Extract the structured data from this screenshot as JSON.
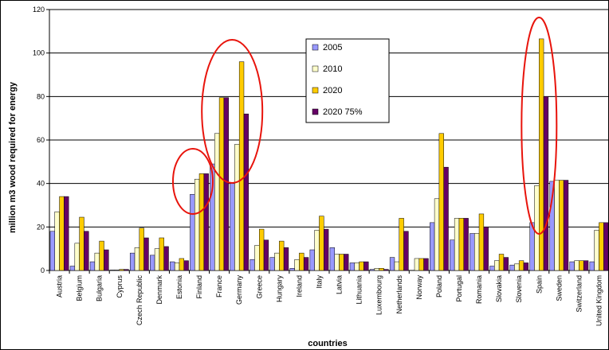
{
  "colors": {
    "series_2005": "#9999ff",
    "series_2010": "#ffffcc",
    "series_2020": "#ffcc00",
    "series_2020_75": "#660066",
    "highlight": "#e8140c",
    "grid": "#000000"
  },
  "chart_data": {
    "type": "bar",
    "xlabel": "countries",
    "ylabel": "million m3 wood required for energy",
    "ylim": [
      0,
      120
    ],
    "yticks": [
      0,
      20,
      40,
      60,
      80,
      100,
      120
    ],
    "grid": true,
    "legend_position": "top-center",
    "categories": [
      "Austria",
      "Belgium",
      "Bulgaria",
      "Cyprus",
      "Czech Republic",
      "Denmark",
      "Estonia",
      "Finland",
      "France",
      "Germany",
      "Greece",
      "Hungary",
      "Ireland",
      "Italy",
      "Latvia",
      "Lithuania",
      "Luxembourg",
      "Netherlands",
      "Norway",
      "Poland",
      "Portugal",
      "Romania",
      "Slovakia",
      "Slovenia",
      "Spain",
      "Sweden",
      "Switzerland",
      "United Kingdom"
    ],
    "series": [
      {
        "name": "2005",
        "values": [
          18,
          2,
          4,
          0.2,
          8,
          7,
          4,
          35,
          49,
          40,
          5,
          6,
          1,
          9.5,
          10.5,
          3.5,
          0.5,
          6,
          0,
          22,
          14,
          17,
          2,
          2.5,
          22,
          41,
          4,
          4
        ]
      },
      {
        "name": "2010",
        "values": [
          27,
          12.5,
          8,
          0.2,
          10.5,
          10,
          3.5,
          42,
          63,
          58,
          11.5,
          8,
          5,
          18.5,
          7.5,
          3.5,
          1,
          4,
          5.5,
          33,
          24,
          17,
          4.5,
          3,
          39,
          41.5,
          4.5,
          18.5
        ]
      },
      {
        "name": "2020",
        "values": [
          34,
          24.5,
          13.5,
          0.5,
          19.5,
          15,
          5.5,
          44.5,
          79.5,
          96,
          19,
          13.5,
          8,
          25,
          7.5,
          4,
          1,
          24,
          5.5,
          63,
          24,
          26,
          7.5,
          4.5,
          106.5,
          41.5,
          4.5,
          22
        ]
      },
      {
        "name": "2020 75%",
        "values": [
          34,
          18,
          9.5,
          0.5,
          15,
          11,
          4.5,
          44.5,
          79.5,
          72,
          14,
          10.5,
          6,
          19,
          7.5,
          4,
          0.5,
          18,
          5.5,
          47.5,
          24,
          20,
          6,
          3.5,
          80,
          41.5,
          4.5,
          22
        ]
      }
    ],
    "annotations": [
      {
        "type": "ellipse",
        "target": "Finland",
        "color": "highlight"
      },
      {
        "type": "ellipse",
        "target": "Germany",
        "color": "highlight"
      },
      {
        "type": "ellipse",
        "target": "Spain",
        "color": "highlight"
      }
    ]
  }
}
